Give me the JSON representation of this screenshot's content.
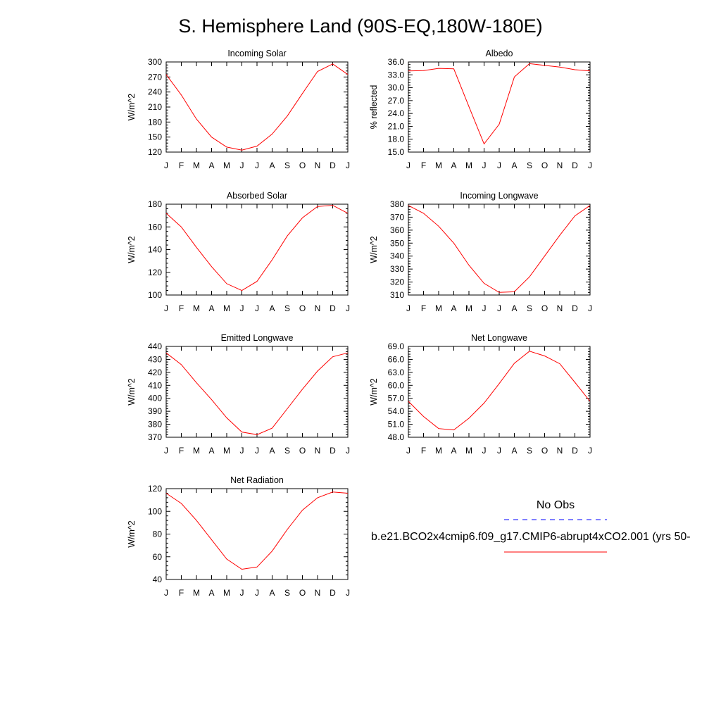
{
  "title": "S. Hemisphere Land (90S-EQ,180W-180E)",
  "colors": {
    "model": "#ff0000",
    "obs": "#0000ff",
    "axis": "#000000"
  },
  "legend": {
    "obs_label": "No Obs",
    "model_label": "b.e21.BCO2x4cmip6.f09_g17.CMIP6-abrupt4xCO2.001 (yrs 50-"
  },
  "chart_data": [
    {
      "type": "line",
      "title": "Incoming Solar",
      "ylabel": "W/m^2",
      "xlabel": "",
      "ylim": [
        120,
        300
      ],
      "yticks": [
        "120",
        "150",
        "180",
        "210",
        "240",
        "270",
        "300"
      ],
      "categories": [
        "J",
        "F",
        "M",
        "A",
        "M",
        "J",
        "J",
        "A",
        "S",
        "O",
        "N",
        "D",
        "J"
      ],
      "series": [
        {
          "values": [
            275,
            234,
            186,
            150,
            130,
            124,
            132,
            156,
            192,
            237,
            281,
            296,
            275
          ]
        }
      ]
    },
    {
      "type": "line",
      "title": "Albedo",
      "ylabel": "% reflected",
      "xlabel": "",
      "ylim": [
        15.0,
        36.0
      ],
      "yticks": [
        "15.0",
        "18.0",
        "21.0",
        "24.0",
        "27.0",
        "30.0",
        "33.0",
        "36.0"
      ],
      "categories": [
        "J",
        "F",
        "M",
        "A",
        "M",
        "J",
        "J",
        "A",
        "S",
        "O",
        "N",
        "D",
        "J"
      ],
      "series": [
        {
          "values": [
            33.9,
            34.0,
            34.5,
            34.4,
            25.6,
            16.9,
            21.5,
            32.5,
            35.6,
            35.2,
            34.8,
            34.2,
            33.9
          ]
        }
      ]
    },
    {
      "type": "line",
      "title": "Absorbed Solar",
      "ylabel": "W/m^2",
      "xlabel": "",
      "ylim": [
        100,
        180
      ],
      "yticks": [
        "100",
        "120",
        "140",
        "160",
        "180"
      ],
      "categories": [
        "J",
        "F",
        "M",
        "A",
        "M",
        "J",
        "J",
        "A",
        "S",
        "O",
        "N",
        "D",
        "J"
      ],
      "series": [
        {
          "values": [
            172,
            160,
            142,
            125,
            110,
            104,
            112,
            131,
            152,
            168,
            178,
            179,
            172
          ]
        }
      ]
    },
    {
      "type": "line",
      "title": "Incoming Longwave",
      "ylabel": "W/m^2",
      "xlabel": "",
      "ylim": [
        310,
        380
      ],
      "yticks": [
        "310",
        "320",
        "330",
        "340",
        "350",
        "360",
        "370",
        "380"
      ],
      "categories": [
        "J",
        "F",
        "M",
        "A",
        "M",
        "J",
        "J",
        "A",
        "S",
        "O",
        "N",
        "D",
        "J"
      ],
      "series": [
        {
          "values": [
            379,
            373,
            363,
            350,
            333,
            319,
            312,
            312.5,
            324,
            340,
            356,
            371,
            379
          ]
        }
      ]
    },
    {
      "type": "line",
      "title": "Emitted Longwave",
      "ylabel": "W/m^2",
      "xlabel": "",
      "ylim": [
        370,
        440
      ],
      "yticks": [
        "370",
        "380",
        "390",
        "400",
        "410",
        "420",
        "430",
        "440"
      ],
      "categories": [
        "J",
        "F",
        "M",
        "A",
        "M",
        "J",
        "J",
        "A",
        "S",
        "O",
        "N",
        "D",
        "J"
      ],
      "series": [
        {
          "values": [
            435,
            426,
            412,
            399,
            385,
            374,
            372,
            377,
            392,
            407,
            421,
            432,
            435
          ]
        }
      ]
    },
    {
      "type": "line",
      "title": "Net Longwave",
      "ylabel": "W/m^2",
      "xlabel": "",
      "ylim": [
        48.0,
        69.0
      ],
      "yticks": [
        "48.0",
        "51.0",
        "54.0",
        "57.0",
        "60.0",
        "63.0",
        "66.0",
        "69.0"
      ],
      "categories": [
        "J",
        "F",
        "M",
        "A",
        "M",
        "J",
        "J",
        "A",
        "S",
        "O",
        "N",
        "D",
        "J"
      ],
      "series": [
        {
          "values": [
            56.3,
            52.8,
            50.0,
            49.7,
            52.4,
            55.9,
            60.4,
            65.1,
            67.9,
            66.8,
            65.0,
            60.7,
            56.3
          ]
        }
      ]
    },
    {
      "type": "line",
      "title": "Net Radiation",
      "ylabel": "W/m^2",
      "xlabel": "",
      "ylim": [
        40,
        120
      ],
      "yticks": [
        "40",
        "60",
        "80",
        "100",
        "120"
      ],
      "categories": [
        "J",
        "F",
        "M",
        "A",
        "M",
        "J",
        "J",
        "A",
        "S",
        "O",
        "N",
        "D",
        "J"
      ],
      "series": [
        {
          "values": [
            116,
            107,
            92,
            75,
            58,
            49,
            51,
            65,
            84,
            101,
            112,
            117,
            116
          ]
        }
      ]
    }
  ]
}
